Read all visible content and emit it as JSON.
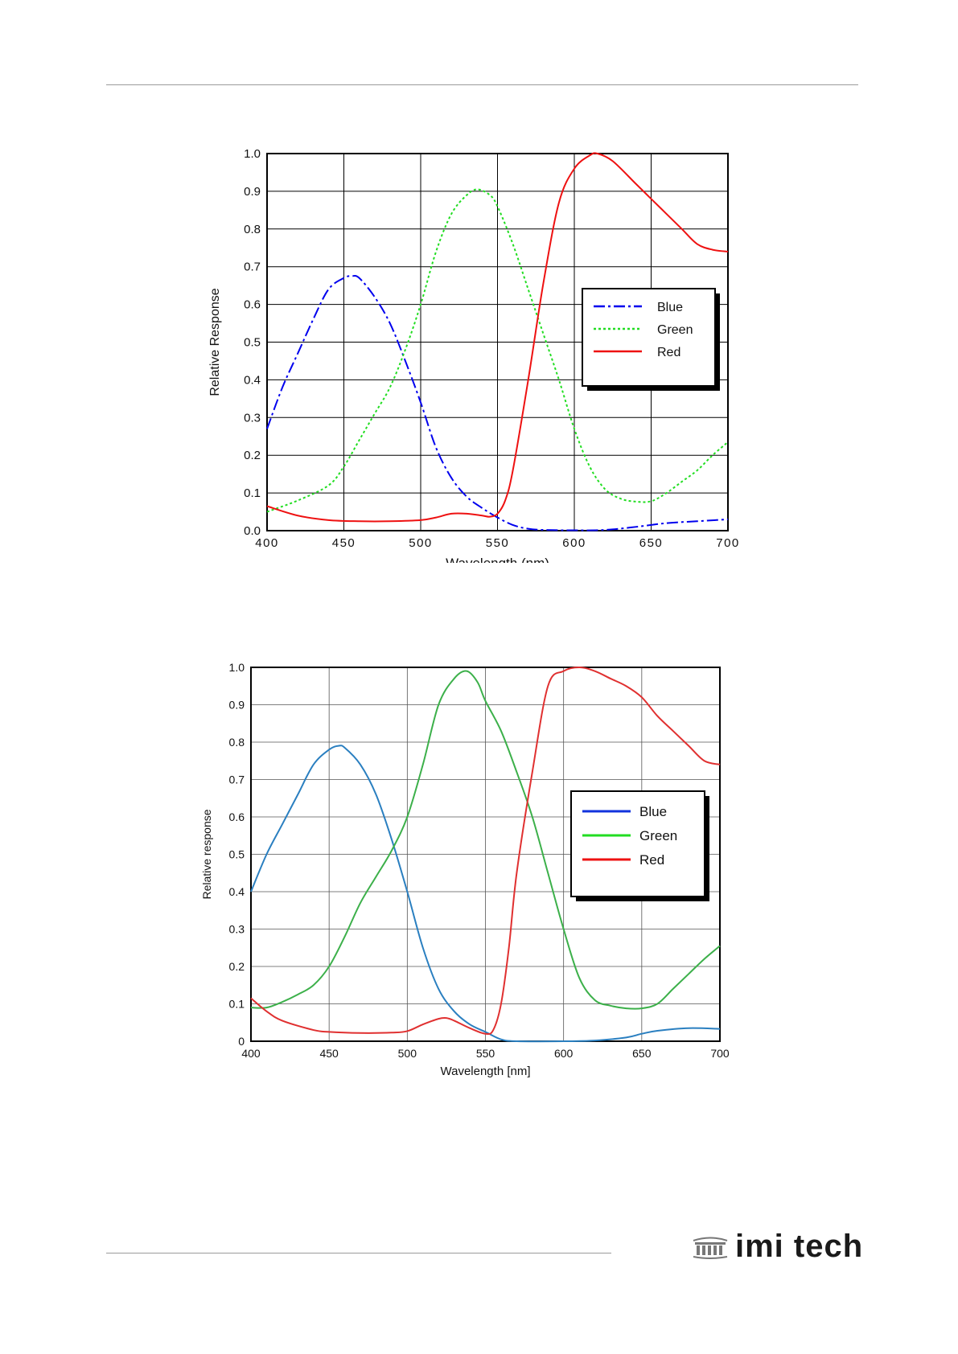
{
  "footer": {
    "logo_text": "imi tech"
  },
  "chart_data": [
    {
      "type": "line",
      "title": "",
      "xlabel": "Wavelength (nm)",
      "ylabel": "Relative Response",
      "xlim": [
        400,
        700
      ],
      "ylim": [
        0,
        1
      ],
      "xticks": [
        "400",
        "450",
        "500",
        "550",
        "600",
        "650",
        "700"
      ],
      "yticks": [
        "0.0",
        "0.1",
        "0.2",
        "0.3",
        "0.4",
        "0.5",
        "0.6",
        "0.7",
        "0.8",
        "0.9",
        "1.0"
      ],
      "grid": true,
      "legend": "right",
      "series": [
        {
          "name": "Blue",
          "color": "#0000ee",
          "style": "dashdot",
          "x": [
            400,
            410,
            420,
            430,
            440,
            450,
            455,
            460,
            470,
            480,
            490,
            500,
            510,
            520,
            530,
            540,
            550,
            560,
            570,
            580,
            600,
            620,
            640,
            660,
            680,
            700
          ],
          "y": [
            0.27,
            0.38,
            0.47,
            0.56,
            0.64,
            0.67,
            0.675,
            0.67,
            0.62,
            0.55,
            0.45,
            0.34,
            0.22,
            0.14,
            0.09,
            0.06,
            0.035,
            0.015,
            0.005,
            0.002,
            0.001,
            0.002,
            0.01,
            0.02,
            0.025,
            0.03
          ]
        },
        {
          "name": "Green",
          "color": "#22dd22",
          "style": "dotted",
          "x": [
            400,
            420,
            440,
            450,
            460,
            470,
            480,
            490,
            500,
            510,
            520,
            530,
            537,
            545,
            550,
            560,
            570,
            580,
            590,
            600,
            610,
            620,
            630,
            640,
            650,
            660,
            670,
            680,
            690,
            700
          ],
          "y": [
            0.05,
            0.08,
            0.12,
            0.17,
            0.24,
            0.31,
            0.38,
            0.48,
            0.6,
            0.74,
            0.84,
            0.89,
            0.905,
            0.89,
            0.86,
            0.76,
            0.64,
            0.52,
            0.4,
            0.27,
            0.17,
            0.11,
            0.085,
            0.077,
            0.078,
            0.1,
            0.13,
            0.16,
            0.2,
            0.235
          ]
        },
        {
          "name": "Red",
          "color": "#ee1111",
          "style": "solid",
          "x": [
            400,
            420,
            440,
            460,
            480,
            500,
            510,
            520,
            530,
            540,
            545,
            550,
            555,
            560,
            570,
            580,
            590,
            600,
            610,
            615,
            625,
            640,
            650,
            660,
            670,
            680,
            690,
            700
          ],
          "y": [
            0.065,
            0.04,
            0.028,
            0.025,
            0.025,
            0.028,
            0.035,
            0.045,
            0.045,
            0.04,
            0.037,
            0.045,
            0.08,
            0.16,
            0.4,
            0.66,
            0.87,
            0.96,
            0.995,
            1.0,
            0.98,
            0.92,
            0.88,
            0.84,
            0.8,
            0.76,
            0.745,
            0.74
          ]
        }
      ]
    },
    {
      "type": "line",
      "title": "",
      "xlabel": "Wavelength [nm]",
      "ylabel": "Relative response",
      "xlim": [
        400,
        700
      ],
      "ylim": [
        0,
        1
      ],
      "xticks": [
        "400",
        "450",
        "500",
        "550",
        "600",
        "650",
        "700"
      ],
      "yticks": [
        "0",
        "0.1",
        "0.2",
        "0.3",
        "0.4",
        "0.5",
        "0.6",
        "0.7",
        "0.8",
        "0.9",
        "1.0"
      ],
      "grid": true,
      "legend": "right",
      "series": [
        {
          "name": "Blue",
          "color": "#2a7fc0",
          "legend_color": "#1133dd",
          "style": "solid",
          "x": [
            400,
            410,
            420,
            430,
            440,
            450,
            456,
            460,
            470,
            480,
            490,
            500,
            510,
            520,
            530,
            540,
            550,
            560,
            570,
            600,
            620,
            640,
            650,
            660,
            680,
            700
          ],
          "y": [
            0.4,
            0.5,
            0.58,
            0.66,
            0.74,
            0.78,
            0.79,
            0.785,
            0.74,
            0.66,
            0.54,
            0.4,
            0.25,
            0.14,
            0.08,
            0.045,
            0.025,
            0.005,
            0,
            0,
            0.002,
            0.01,
            0.02,
            0.028,
            0.035,
            0.033
          ]
        },
        {
          "name": "Green",
          "color": "#3cb04a",
          "legend_color": "#22dd22",
          "style": "solid",
          "x": [
            400,
            410,
            420,
            430,
            440,
            450,
            460,
            470,
            480,
            490,
            500,
            510,
            520,
            530,
            538,
            545,
            550,
            560,
            570,
            580,
            590,
            600,
            610,
            620,
            630,
            640,
            650,
            660,
            670,
            680,
            690,
            700
          ],
          "y": [
            0.09,
            0.09,
            0.105,
            0.125,
            0.15,
            0.2,
            0.28,
            0.37,
            0.44,
            0.51,
            0.6,
            0.74,
            0.9,
            0.97,
            0.99,
            0.96,
            0.91,
            0.83,
            0.72,
            0.6,
            0.45,
            0.3,
            0.17,
            0.11,
            0.095,
            0.088,
            0.088,
            0.1,
            0.14,
            0.18,
            0.22,
            0.255
          ]
        },
        {
          "name": "Red",
          "color": "#e03030",
          "legend_color": "#ee1111",
          "style": "solid",
          "x": [
            400,
            410,
            420,
            440,
            450,
            470,
            490,
            500,
            510,
            520,
            525,
            530,
            540,
            550,
            555,
            560,
            565,
            570,
            580,
            590,
            600,
            610,
            620,
            630,
            640,
            650,
            660,
            670,
            680,
            690,
            700
          ],
          "y": [
            0.115,
            0.08,
            0.055,
            0.03,
            0.025,
            0.022,
            0.023,
            0.027,
            0.045,
            0.06,
            0.062,
            0.055,
            0.035,
            0.02,
            0.03,
            0.1,
            0.25,
            0.45,
            0.72,
            0.95,
            0.99,
            1.0,
            0.99,
            0.97,
            0.95,
            0.92,
            0.87,
            0.83,
            0.79,
            0.75,
            0.74
          ]
        }
      ]
    }
  ]
}
